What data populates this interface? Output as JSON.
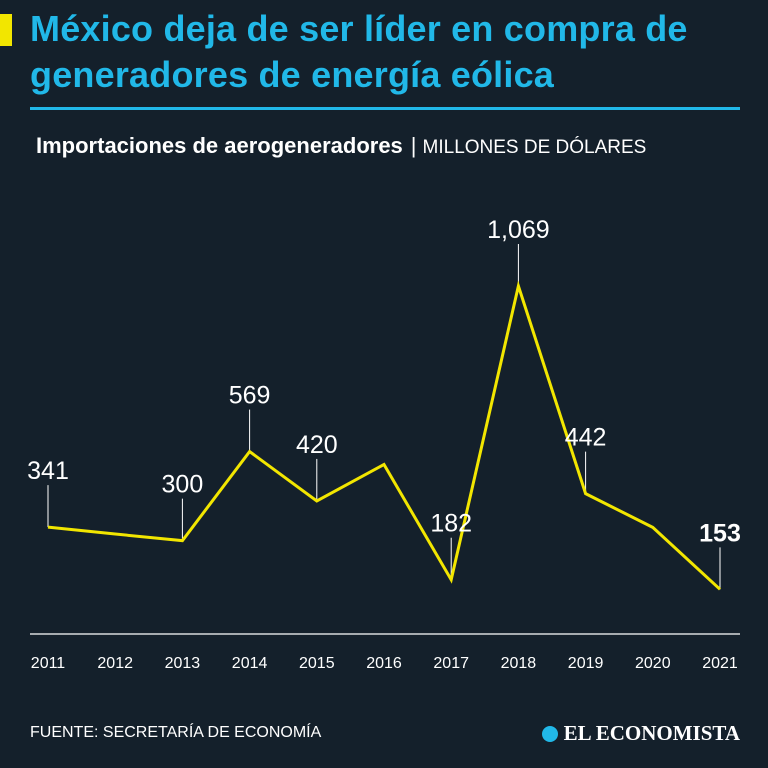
{
  "header": {
    "title": "México deja de ser líder en compra de generadores de energía eólica",
    "subtitle_main": "Importaciones de aerogeneradores",
    "subtitle_sep": "|",
    "subtitle_units": "MILLONES DE DÓLARES"
  },
  "colors": {
    "background": "#14202b",
    "title": "#21b8e8",
    "line": "#f2e600",
    "text": "#ffffff"
  },
  "chart_data": {
    "type": "line",
    "title": "Importaciones de aerogeneradores",
    "ylabel": "Millones de dólares",
    "xlabel": "",
    "x": [
      "2011",
      "2012",
      "2013",
      "2014",
      "2015",
      "2016",
      "2017",
      "2018",
      "2019",
      "2020",
      "2021"
    ],
    "values": [
      341,
      320,
      300,
      569,
      420,
      530,
      182,
      1069,
      442,
      340,
      153
    ],
    "labels": [
      {
        "index": 0,
        "text": "341"
      },
      {
        "index": 2,
        "text": "300"
      },
      {
        "index": 3,
        "text": "569"
      },
      {
        "index": 4,
        "text": "420"
      },
      {
        "index": 6,
        "text": "182"
      },
      {
        "index": 7,
        "text": "1,069"
      },
      {
        "index": 8,
        "text": "442"
      },
      {
        "index": 10,
        "text": "153",
        "bold": true
      }
    ],
    "ylim": [
      0,
      1200
    ],
    "grid": false
  },
  "footer": {
    "source": "FUENTE: SECRETARÍA DE ECONOMÍA",
    "logo_text": "EL ECONOMISTA"
  }
}
